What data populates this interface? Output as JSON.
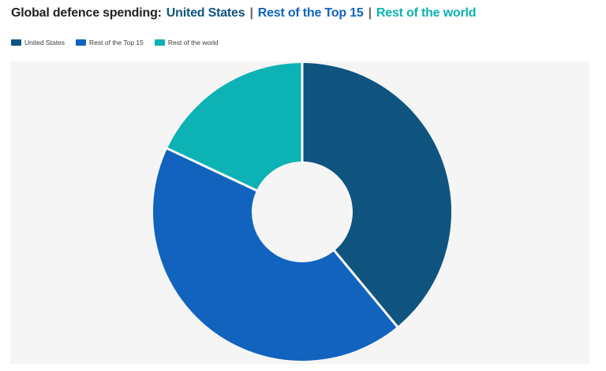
{
  "title": {
    "prefix": "Global defence spending:",
    "prefix_color": "#222222",
    "separator": "|",
    "separator_color": "#666666",
    "parts": [
      {
        "label": "United States",
        "color": "#0F547E"
      },
      {
        "label": "Rest of the Top 15",
        "color": "#1163BE"
      },
      {
        "label": "Rest of the world",
        "color": "#0CB2B4"
      }
    ]
  },
  "legend": {
    "items": [
      {
        "label": "United States",
        "color": "#0F547E"
      },
      {
        "label": "Rest of the Top 15",
        "color": "#1163BE"
      },
      {
        "label": "Rest of the world",
        "color": "#0CB2B4"
      }
    ]
  },
  "chart_data": {
    "type": "pie",
    "subtype": "donut",
    "title": "Global defence spending: United States | Rest of the Top 15 | Rest of the world",
    "categories": [
      "United States",
      "Rest of the Top 15",
      "Rest of the world"
    ],
    "values": [
      39,
      43,
      18
    ],
    "colors": [
      "#0F547E",
      "#1163BE",
      "#0CB2B4"
    ],
    "start_angle_deg": 0,
    "direction": "clockwise",
    "inner_radius_ratio": 0.34,
    "divider_color": "#FFFFFF",
    "divider_width": 3,
    "panel_background": "#F5F5F6",
    "legend_position": "top-left",
    "labels_shown": false
  }
}
